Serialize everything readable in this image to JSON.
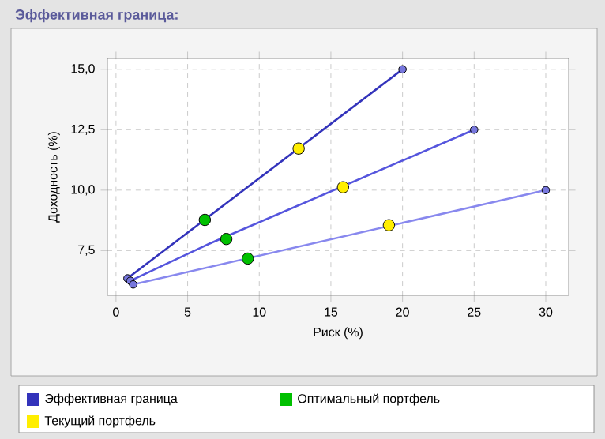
{
  "chart_data": {
    "type": "line",
    "title": "Эффективная граница:",
    "xlabel": "Риск (%)",
    "ylabel": "Доходность (%)",
    "xlim": [
      -0.6,
      31.6
    ],
    "ylim": [
      5.65,
      15.45
    ],
    "xticks": [
      0,
      5,
      10,
      15,
      20,
      25,
      30
    ],
    "yticks": [
      {
        "value": 7.5,
        "label": "7,5"
      },
      {
        "value": 10,
        "label": "10,0"
      },
      {
        "value": 12.5,
        "label": "12,5"
      },
      {
        "value": 15,
        "label": "15,0"
      }
    ],
    "grid": true,
    "legend": "bottom",
    "line_style": "solid",
    "series": [
      {
        "name": "Эффективная граница",
        "color": "#3333bb",
        "x": [
          0.8,
          20
        ],
        "values": [
          6.35,
          15
        ]
      },
      {
        "color": "#5555dd",
        "x": [
          1.0,
          6.5,
          25
        ],
        "values": [
          6.25,
          7.78,
          12.5
        ]
      },
      {
        "color": "#8888ee",
        "x": [
          1.2,
          30
        ],
        "values": [
          6.1,
          10
        ]
      },
      {
        "type": "scatter",
        "color": "#7777dd",
        "x": [
          0.8,
          1.0,
          1.2,
          20,
          25,
          30
        ],
        "values": [
          6.35,
          6.25,
          6.1,
          15,
          12.5,
          10
        ]
      },
      {
        "name": "Оптимальный портфель",
        "type": "scatter",
        "color": "#00c000",
        "x": [
          6.2,
          7.7,
          9.2
        ],
        "values": [
          8.77,
          7.98,
          7.17
        ]
      },
      {
        "name": "Текущий портфель",
        "type": "scatter",
        "color": "#ffee00",
        "x": [
          12.75,
          15.85,
          19.05
        ],
        "values": [
          11.72,
          10.12,
          8.55
        ]
      }
    ]
  }
}
